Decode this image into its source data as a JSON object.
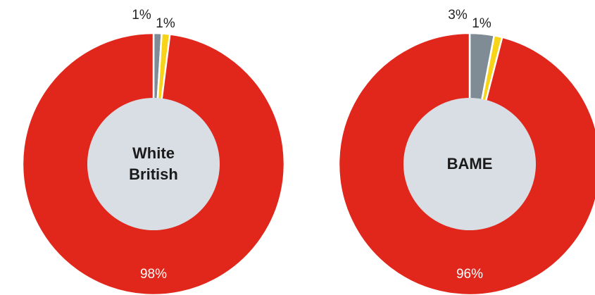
{
  "chart_data": [
    {
      "type": "pie",
      "donut": true,
      "center_label": [
        "White",
        "British"
      ],
      "slices": [
        {
          "label": "1%",
          "value": 1,
          "color": "#7f8c96",
          "label_position": "outside"
        },
        {
          "label": "1%",
          "value": 1,
          "color": "#f7d417",
          "label_position": "outside"
        },
        {
          "label": "98%",
          "value": 98,
          "color": "#e1261c",
          "label_position": "inside"
        }
      ]
    },
    {
      "type": "pie",
      "donut": true,
      "center_label": [
        "BAME"
      ],
      "slices": [
        {
          "label": "3%",
          "value": 3,
          "color": "#7f8c96",
          "label_position": "outside"
        },
        {
          "label": "1%",
          "value": 1,
          "color": "#f7d417",
          "label_position": "outside"
        },
        {
          "label": "96%",
          "value": 96,
          "color": "#e1261c",
          "label_position": "inside"
        }
      ]
    }
  ],
  "colors": {
    "hole": "#d8dee4",
    "separator": "#ffffff",
    "outside_label": "#222222",
    "inside_label": "#ffffff",
    "center_label": "#1a1a1a"
  }
}
